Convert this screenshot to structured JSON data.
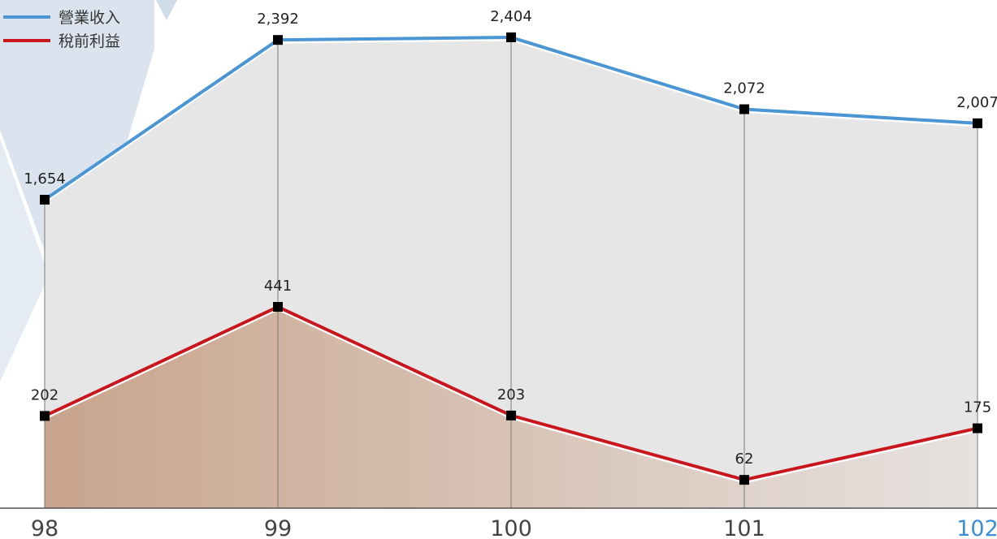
{
  "chart_data": {
    "type": "area",
    "categories": [
      "98",
      "99",
      "100",
      "101",
      "102"
    ],
    "highlight_category": "102",
    "series": [
      {
        "name": "營業收入",
        "values": [
          1654,
          2392,
          2404,
          2072,
          2007
        ],
        "labels": [
          "1,654",
          "2,392",
          "2,404",
          "2,072",
          "2,007"
        ],
        "color": "#4a95d3"
      },
      {
        "name": "稅前利益",
        "values": [
          202,
          441,
          203,
          62,
          175
        ],
        "labels": [
          "202",
          "441",
          "203",
          "62",
          "175"
        ],
        "color": "#c9161d"
      }
    ],
    "legend_position": "top-left",
    "colors": {
      "revenue_fill": "#e6e6e6",
      "profit_fill_start": "#c9a48c",
      "profit_fill_end": "#e6e2df",
      "tick_color": "#444444",
      "highlight_tick_color": "#3b8fd6",
      "background_shape": "#dbe4ee"
    },
    "grid": false
  }
}
